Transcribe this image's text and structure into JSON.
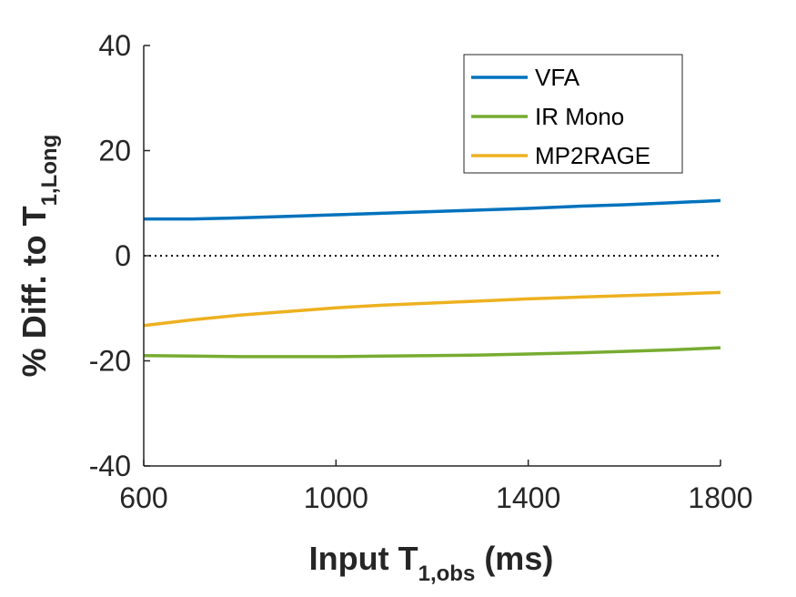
{
  "chart_data": {
    "type": "line",
    "xlabel": {
      "main": "Input T",
      "sub": "1,obs",
      "suffix": " (ms)"
    },
    "ylabel": {
      "main": "% Diff. to T",
      "sub": "1,Long"
    },
    "xlim": [
      600,
      1800
    ],
    "ylim": [
      -40,
      40
    ],
    "xticks": [
      600,
      1000,
      1400,
      1800
    ],
    "yticks": [
      -40,
      -20,
      0,
      20,
      40
    ],
    "xtick_labels": [
      "600",
      "1000",
      "1400",
      "1800"
    ],
    "ytick_labels": [
      "-40",
      "-20",
      "0",
      "20",
      "40"
    ],
    "reference_line": {
      "y": 0,
      "style": "dotted",
      "color": "#000000"
    },
    "grid": false,
    "legend_position": "top-right",
    "x": [
      600,
      700,
      800,
      900,
      1000,
      1100,
      1200,
      1300,
      1400,
      1500,
      1600,
      1700,
      1800
    ],
    "series": [
      {
        "name": "VFA",
        "color": "#0072BD",
        "values": [
          7.0,
          7.0,
          7.2,
          7.5,
          7.8,
          8.1,
          8.4,
          8.7,
          9.0,
          9.4,
          9.7,
          10.1,
          10.5
        ]
      },
      {
        "name": "IR Mono",
        "color": "#77AC30",
        "values": [
          -19.0,
          -19.1,
          -19.2,
          -19.2,
          -19.2,
          -19.1,
          -19.0,
          -18.9,
          -18.7,
          -18.5,
          -18.2,
          -17.9,
          -17.5
        ]
      },
      {
        "name": "MP2RAGE",
        "color": "#EDB120",
        "values": [
          -13.3,
          -12.2,
          -11.3,
          -10.6,
          -9.9,
          -9.4,
          -9.0,
          -8.6,
          -8.2,
          -7.9,
          -7.6,
          -7.3,
          -7.0
        ]
      }
    ]
  }
}
